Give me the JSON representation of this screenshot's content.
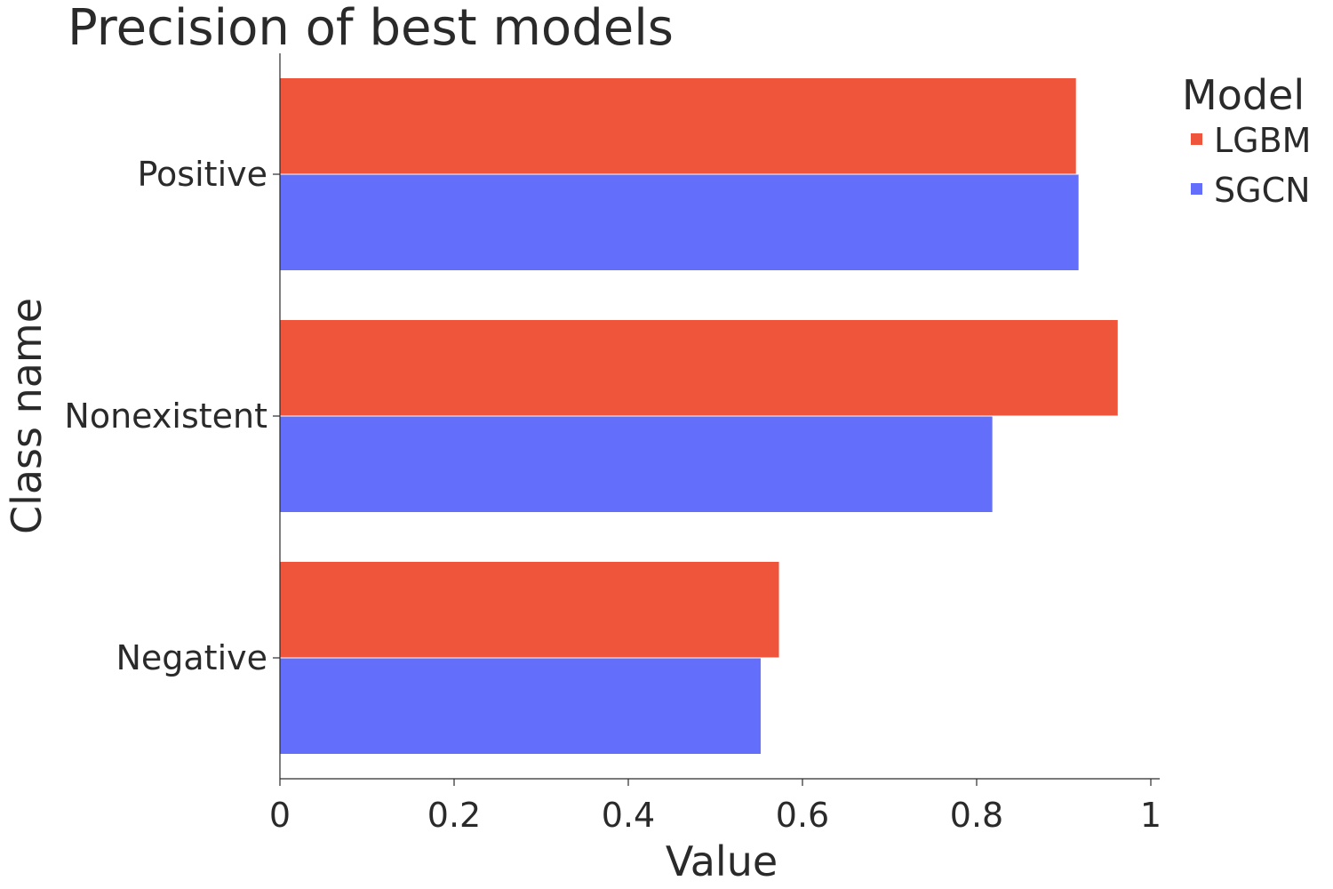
{
  "chart_data": {
    "type": "bar",
    "orientation": "horizontal",
    "title": "Precision of best models",
    "xlabel": "Value",
    "ylabel": "Class name",
    "xlim": [
      0,
      1
    ],
    "xticks": [
      0,
      0.2,
      0.4,
      0.6,
      0.8,
      1
    ],
    "xtick_labels": [
      "0",
      "0.2",
      "0.4",
      "0.6",
      "0.8",
      "1"
    ],
    "categories": [
      "Positive",
      "Nonexistent",
      "Negative"
    ],
    "series": [
      {
        "name": "LGBM",
        "color": "#EF553B",
        "values": [
          0.914,
          0.962,
          0.573
        ]
      },
      {
        "name": "SGCN",
        "color": "#636EFA",
        "values": [
          0.917,
          0.818,
          0.552
        ]
      }
    ],
    "legend": {
      "title": "Model",
      "placement": "top-right"
    },
    "grid": false
  }
}
